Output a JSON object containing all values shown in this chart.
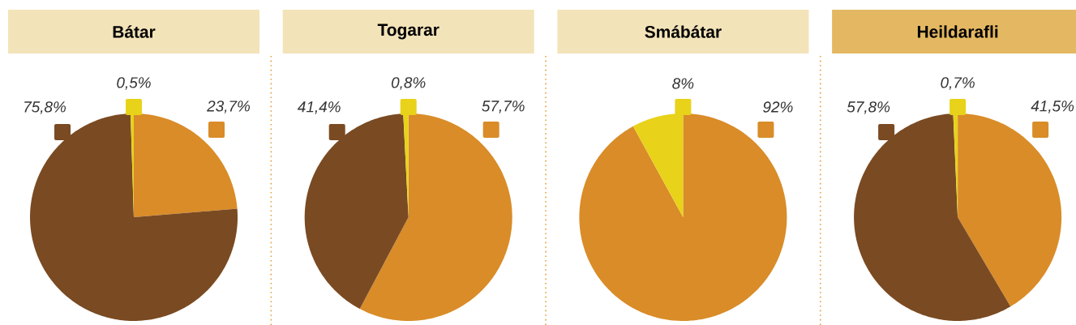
{
  "chart_data": [
    {
      "type": "pie",
      "title": "Bátar",
      "categories": [
        null,
        null,
        null
      ],
      "values": [
        23.7,
        75.8,
        0.5
      ],
      "colors": [
        "#d98c28",
        "#7a4a22",
        "#e8d21a"
      ],
      "value_labels": [
        "23,7%",
        "75,8%",
        "0,5%"
      ]
    },
    {
      "type": "pie",
      "title": "Togarar",
      "categories": [
        null,
        null,
        null
      ],
      "values": [
        57.7,
        41.4,
        0.8
      ],
      "colors": [
        "#d98c28",
        "#7a4a22",
        "#e8d21a"
      ],
      "value_labels": [
        "57,7%",
        "41,4%",
        "0,8%"
      ]
    },
    {
      "type": "pie",
      "title": "Smábátar",
      "categories": [
        null,
        null
      ],
      "values": [
        92,
        8
      ],
      "colors": [
        "#d98c28",
        "#e8d21a"
      ],
      "value_labels": [
        "92%",
        "8%"
      ]
    },
    {
      "type": "pie",
      "title": "Heildarafli",
      "categories": [
        null,
        null,
        null
      ],
      "values": [
        41.5,
        57.8,
        0.7
      ],
      "colors": [
        "#d98c28",
        "#7a4a22",
        "#e8d21a"
      ],
      "value_labels": [
        "41,5%",
        "57,8%",
        "0,7%"
      ]
    }
  ]
}
